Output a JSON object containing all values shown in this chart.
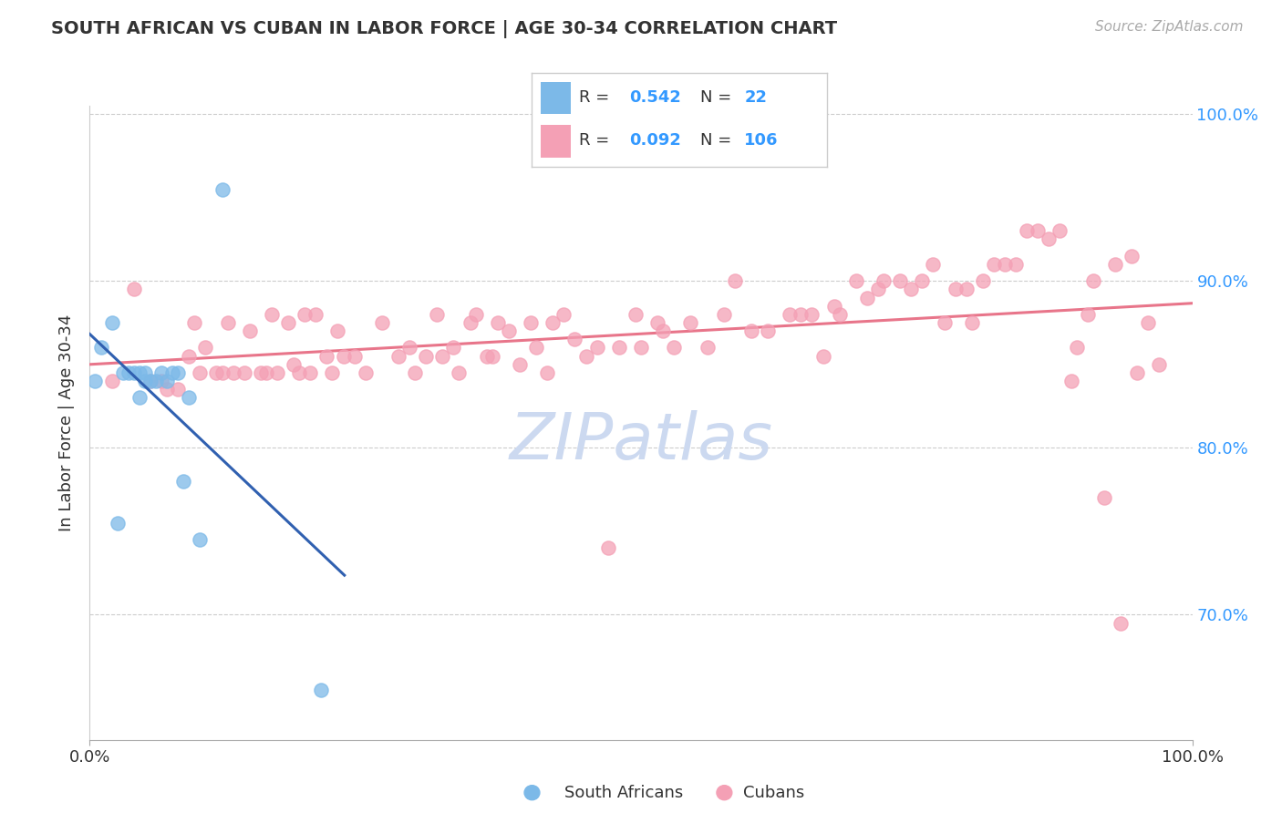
{
  "title": "SOUTH AFRICAN VS CUBAN IN LABOR FORCE | AGE 30-34 CORRELATION CHART",
  "source_text": "Source: ZipAtlas.com",
  "ylabel": "In Labor Force | Age 30-34",
  "xlim": [
    0.0,
    1.0
  ],
  "ylim": [
    0.625,
    1.005
  ],
  "yticks": [
    0.7,
    0.8,
    0.9,
    1.0
  ],
  "ytick_labels": [
    "70.0%",
    "80.0%",
    "90.0%",
    "100.0%"
  ],
  "south_african_color": "#7cb9e8",
  "cuban_color": "#f4a0b5",
  "trend_sa_color": "#3060b0",
  "trend_cuban_color": "#e8758a",
  "watermark_color": "#ccd9f0",
  "sa_x": [
    0.005,
    0.01,
    0.02,
    0.025,
    0.03,
    0.035,
    0.04,
    0.045,
    0.045,
    0.05,
    0.05,
    0.055,
    0.06,
    0.065,
    0.07,
    0.075,
    0.08,
    0.085,
    0.09,
    0.1,
    0.12,
    0.21
  ],
  "sa_y": [
    0.84,
    0.86,
    0.875,
    0.755,
    0.845,
    0.845,
    0.845,
    0.845,
    0.83,
    0.845,
    0.84,
    0.84,
    0.84,
    0.845,
    0.84,
    0.845,
    0.845,
    0.78,
    0.83,
    0.745,
    0.955,
    0.655
  ],
  "cuban_x": [
    0.02,
    0.04,
    0.055,
    0.065,
    0.07,
    0.08,
    0.09,
    0.095,
    0.1,
    0.105,
    0.115,
    0.12,
    0.125,
    0.13,
    0.14,
    0.145,
    0.155,
    0.16,
    0.165,
    0.17,
    0.18,
    0.185,
    0.19,
    0.195,
    0.2,
    0.205,
    0.215,
    0.22,
    0.225,
    0.23,
    0.24,
    0.25,
    0.265,
    0.28,
    0.29,
    0.295,
    0.305,
    0.315,
    0.32,
    0.33,
    0.335,
    0.345,
    0.35,
    0.36,
    0.365,
    0.37,
    0.38,
    0.39,
    0.4,
    0.405,
    0.415,
    0.42,
    0.43,
    0.44,
    0.45,
    0.46,
    0.47,
    0.48,
    0.495,
    0.5,
    0.515,
    0.52,
    0.53,
    0.545,
    0.56,
    0.575,
    0.585,
    0.6,
    0.615,
    0.635,
    0.645,
    0.655,
    0.665,
    0.675,
    0.68,
    0.695,
    0.705,
    0.715,
    0.72,
    0.735,
    0.745,
    0.755,
    0.765,
    0.775,
    0.785,
    0.795,
    0.8,
    0.81,
    0.82,
    0.83,
    0.84,
    0.85,
    0.86,
    0.87,
    0.88,
    0.89,
    0.895,
    0.905,
    0.91,
    0.92,
    0.93,
    0.935,
    0.945,
    0.95,
    0.96,
    0.97
  ],
  "cuban_y": [
    0.84,
    0.895,
    0.84,
    0.84,
    0.835,
    0.835,
    0.855,
    0.875,
    0.845,
    0.86,
    0.845,
    0.845,
    0.875,
    0.845,
    0.845,
    0.87,
    0.845,
    0.845,
    0.88,
    0.845,
    0.875,
    0.85,
    0.845,
    0.88,
    0.845,
    0.88,
    0.855,
    0.845,
    0.87,
    0.855,
    0.855,
    0.845,
    0.875,
    0.855,
    0.86,
    0.845,
    0.855,
    0.88,
    0.855,
    0.86,
    0.845,
    0.875,
    0.88,
    0.855,
    0.855,
    0.875,
    0.87,
    0.85,
    0.875,
    0.86,
    0.845,
    0.875,
    0.88,
    0.865,
    0.855,
    0.86,
    0.74,
    0.86,
    0.88,
    0.86,
    0.875,
    0.87,
    0.86,
    0.875,
    0.86,
    0.88,
    0.9,
    0.87,
    0.87,
    0.88,
    0.88,
    0.88,
    0.855,
    0.885,
    0.88,
    0.9,
    0.89,
    0.895,
    0.9,
    0.9,
    0.895,
    0.9,
    0.91,
    0.875,
    0.895,
    0.895,
    0.875,
    0.9,
    0.91,
    0.91,
    0.91,
    0.93,
    0.93,
    0.925,
    0.93,
    0.84,
    0.86,
    0.88,
    0.9,
    0.77,
    0.91,
    0.695,
    0.915,
    0.845,
    0.875,
    0.85
  ]
}
